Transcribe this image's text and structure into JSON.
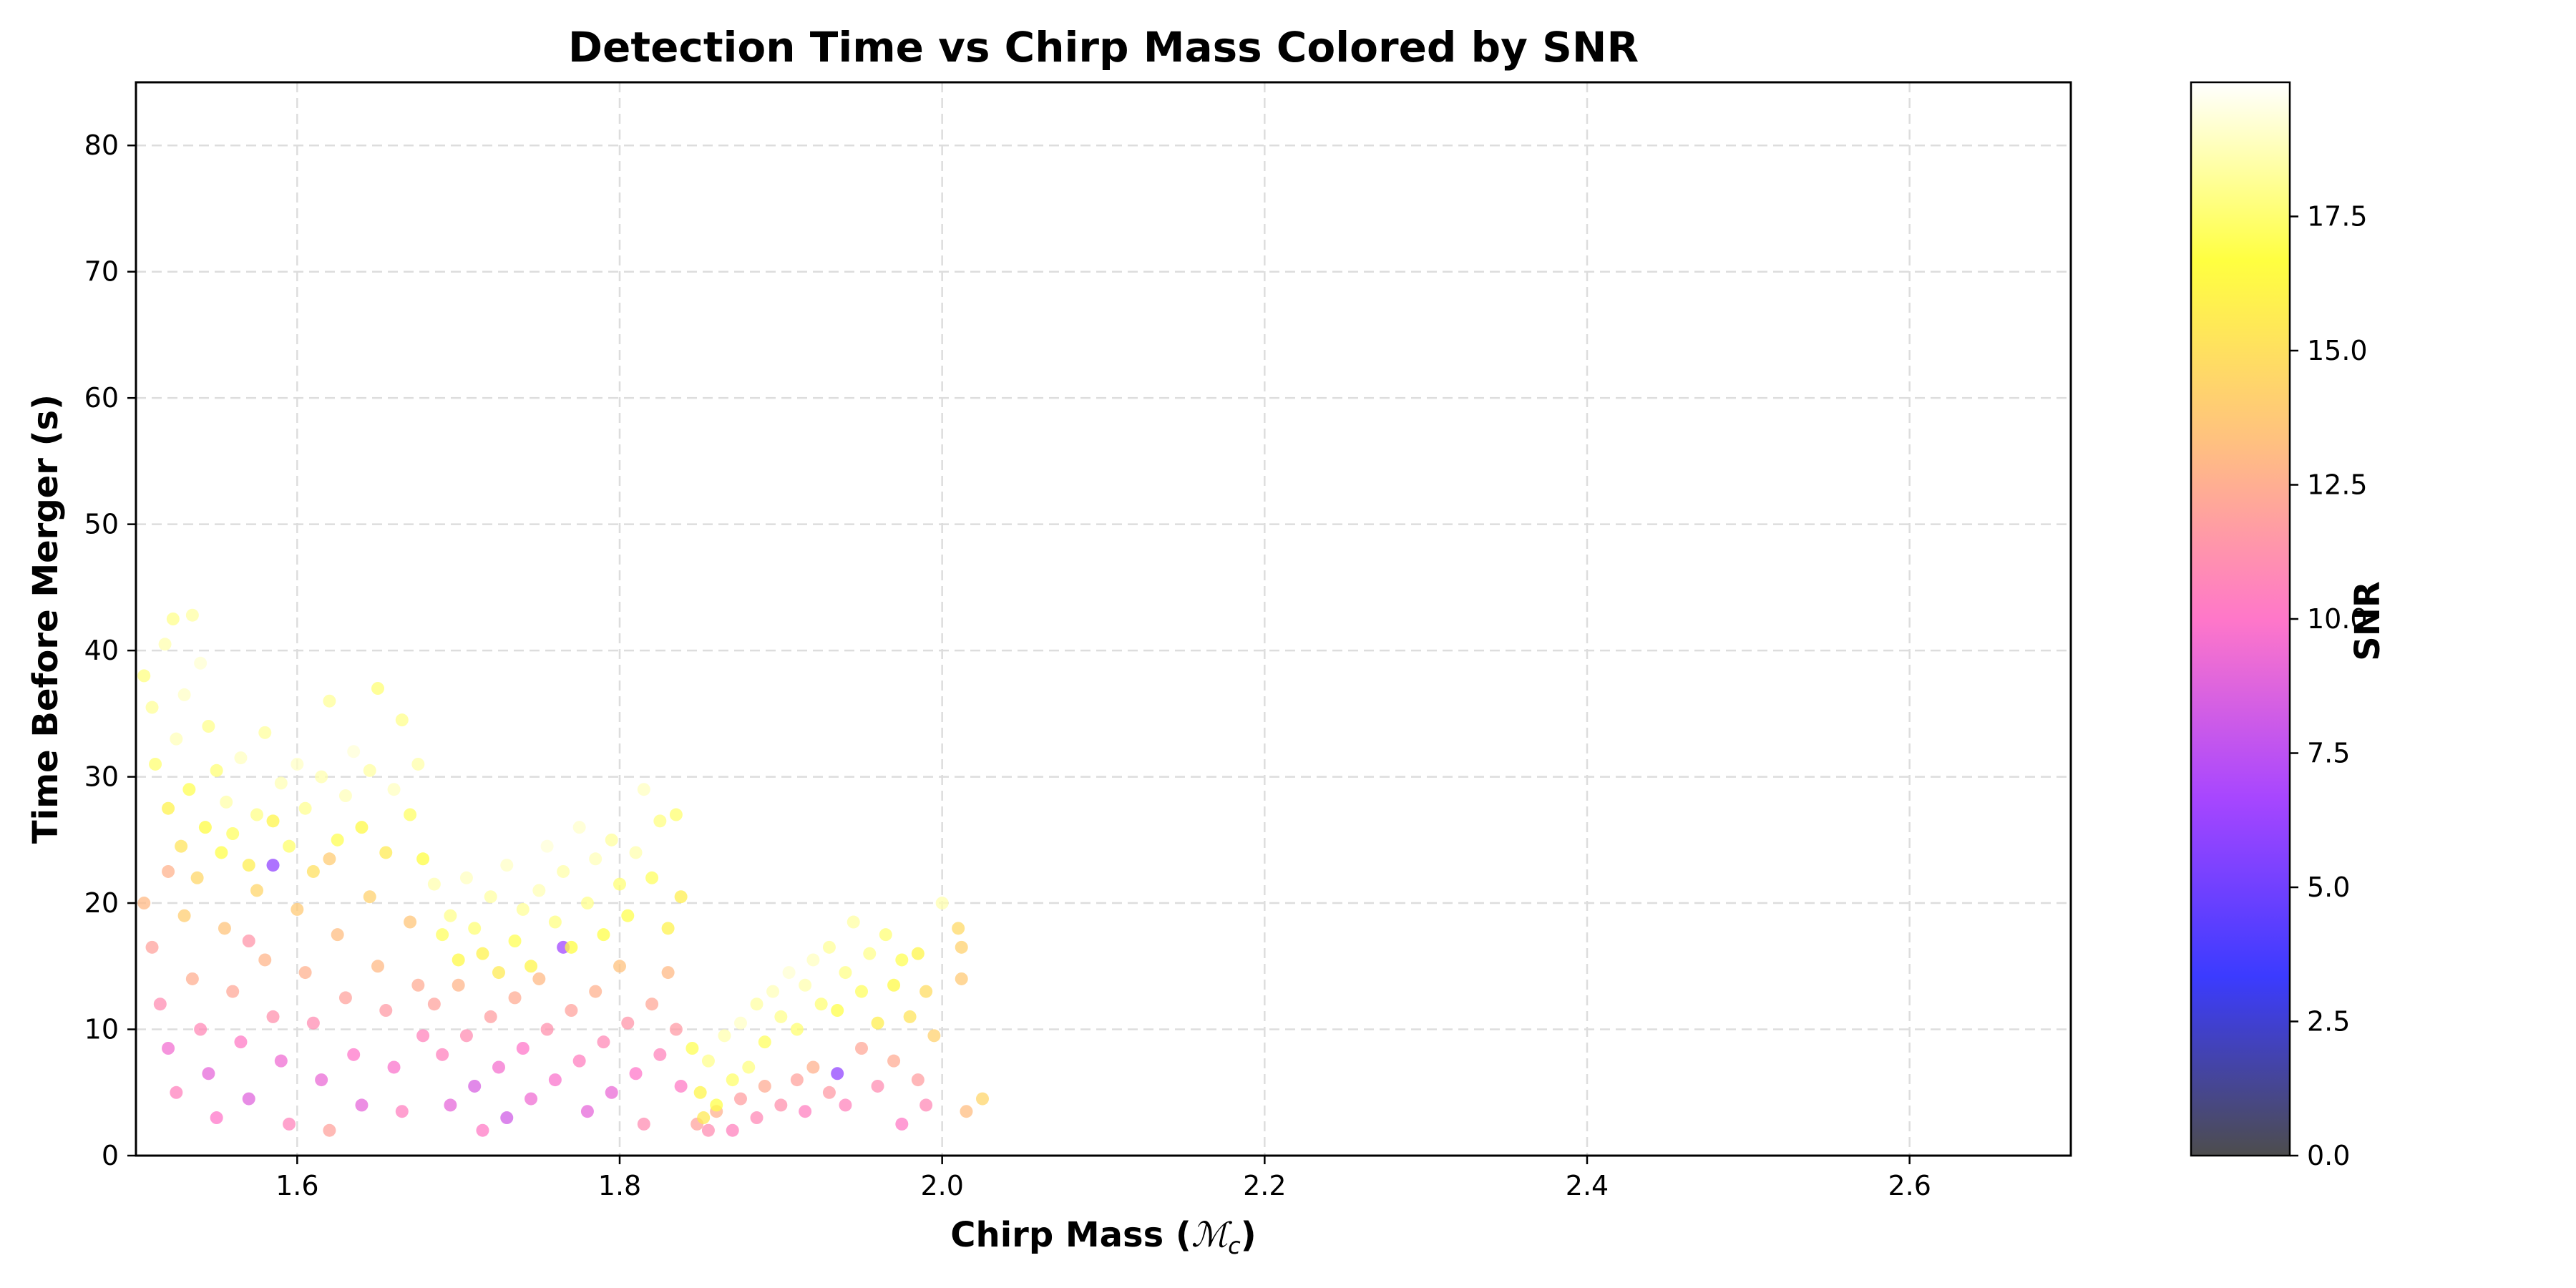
{
  "chart_data": {
    "type": "scatter",
    "title": "Detection Time vs Chirp Mass Colored by SNR",
    "xlabel": "Chirp Mass (ℳc)",
    "xlabel_text": "Chirp Mass (",
    "xlabel_symbol": "ℳ",
    "xlabel_subscript": "c",
    "xlabel_close": ")",
    "ylabel": "Time Before Merger (s)",
    "xlim": [
      1.5,
      2.7
    ],
    "ylim": [
      0,
      85
    ],
    "xticks": [
      1.6,
      1.8,
      2.0,
      2.2,
      2.4,
      2.6
    ],
    "xtick_labels": [
      "1.6",
      "1.8",
      "2.0",
      "2.2",
      "2.4",
      "2.6"
    ],
    "yticks": [
      0,
      10,
      20,
      30,
      40,
      50,
      60,
      70,
      80
    ],
    "ytick_labels": [
      "0",
      "10",
      "20",
      "30",
      "40",
      "50",
      "60",
      "70",
      "80"
    ],
    "grid": true,
    "colorbar": {
      "label": "SNR",
      "range": [
        0,
        20
      ],
      "ticks": [
        0.0,
        2.5,
        5.0,
        7.5,
        10.0,
        12.5,
        15.0,
        17.5
      ],
      "tick_labels": [
        "0.0",
        "2.5",
        "5.0",
        "7.5",
        "10.0",
        "12.5",
        "15.0",
        "17.5"
      ],
      "colormap": "gnuplot2-like (dark grey → blue → purple → pink → orange → yellow → white)",
      "colors": [
        "#4d4d4d",
        "#3b3bff",
        "#a746ff",
        "#ff77c9",
        "#ffc17f",
        "#ffff40",
        "#ffffff"
      ]
    },
    "clusters": [
      {
        "x_range": [
          1.5,
          1.68
        ],
        "y_range": [
          2,
          43
        ],
        "snr_range": [
          6,
          19.5
        ],
        "note": "high-SNR points at top, low-SNR points at bottom"
      },
      {
        "x_range": [
          1.68,
          1.84
        ],
        "y_range": [
          1.5,
          29
        ],
        "snr_range": [
          6,
          19.5
        ],
        "note": "second band, yellow upper, purple lower"
      },
      {
        "x_range": [
          1.84,
          2.03
        ],
        "y_range": [
          1.5,
          20
        ],
        "snr_range": [
          8,
          19
        ],
        "note": "third band, rising toward x=2.0"
      }
    ],
    "series": [
      {
        "points": [
          [
            1.505,
            38.0,
            17.8
          ],
          [
            1.51,
            35.5,
            18.2
          ],
          [
            1.512,
            31.0,
            17.5
          ],
          [
            1.518,
            40.5,
            18.6
          ],
          [
            1.52,
            27.5,
            16.0
          ],
          [
            1.523,
            42.5,
            18.0
          ],
          [
            1.525,
            33.0,
            18.8
          ],
          [
            1.528,
            24.5,
            15.2
          ],
          [
            1.53,
            36.5,
            19.0
          ],
          [
            1.533,
            29.0,
            17.0
          ],
          [
            1.535,
            42.8,
            18.4
          ],
          [
            1.538,
            22.0,
            14.5
          ],
          [
            1.54,
            39.0,
            19.2
          ],
          [
            1.543,
            26.0,
            16.5
          ],
          [
            1.545,
            34.0,
            18.0
          ],
          [
            1.55,
            30.5,
            17.6
          ],
          [
            1.553,
            24.0,
            16.8
          ],
          [
            1.556,
            28.0,
            18.5
          ],
          [
            1.56,
            25.5,
            17.2
          ],
          [
            1.565,
            31.5,
            18.9
          ],
          [
            1.57,
            23.0,
            15.8
          ],
          [
            1.575,
            27.0,
            17.9
          ],
          [
            1.58,
            33.5,
            18.3
          ],
          [
            1.585,
            26.5,
            16.2
          ],
          [
            1.59,
            29.5,
            18.7
          ],
          [
            1.595,
            24.5,
            17.4
          ],
          [
            1.6,
            31.0,
            19.0
          ],
          [
            1.605,
            27.5,
            18.1
          ],
          [
            1.61,
            22.5,
            15.0
          ],
          [
            1.615,
            30.0,
            18.6
          ],
          [
            1.62,
            36.0,
            18.2
          ],
          [
            1.625,
            25.0,
            17.0
          ],
          [
            1.63,
            28.5,
            18.8
          ],
          [
            1.635,
            32.0,
            19.3
          ],
          [
            1.64,
            26.0,
            16.4
          ],
          [
            1.645,
            30.5,
            18.4
          ],
          [
            1.65,
            37.0,
            17.6
          ],
          [
            1.655,
            24.0,
            15.6
          ],
          [
            1.66,
            29.0,
            18.9
          ],
          [
            1.665,
            34.5,
            18.0
          ],
          [
            1.67,
            27.0,
            17.3
          ],
          [
            1.675,
            31.0,
            18.5
          ],
          [
            1.678,
            23.5,
            16.6
          ],
          [
            1.505,
            20.0,
            13.0
          ],
          [
            1.51,
            16.5,
            12.0
          ],
          [
            1.515,
            12.0,
            11.0
          ],
          [
            1.52,
            8.5,
            9.5
          ],
          [
            1.525,
            5.0,
            10.5
          ],
          [
            1.53,
            19.0,
            14.0
          ],
          [
            1.535,
            14.0,
            12.5
          ],
          [
            1.54,
            10.0,
            10.8
          ],
          [
            1.545,
            6.5,
            9.0
          ],
          [
            1.55,
            3.0,
            10.0
          ],
          [
            1.555,
            18.0,
            13.5
          ],
          [
            1.56,
            13.0,
            12.2
          ],
          [
            1.565,
            9.0,
            10.2
          ],
          [
            1.57,
            4.5,
            8.8
          ],
          [
            1.575,
            21.0,
            14.4
          ],
          [
            1.58,
            15.5,
            12.8
          ],
          [
            1.585,
            11.0,
            11.2
          ],
          [
            1.585,
            23.0,
            6.0
          ],
          [
            1.59,
            7.5,
            9.4
          ],
          [
            1.595,
            2.5,
            10.6
          ],
          [
            1.6,
            19.5,
            13.8
          ],
          [
            1.605,
            14.5,
            12.6
          ],
          [
            1.61,
            10.5,
            11.0
          ],
          [
            1.615,
            6.0,
            9.2
          ],
          [
            1.62,
            2.0,
            12.0
          ],
          [
            1.625,
            17.5,
            13.2
          ],
          [
            1.63,
            12.5,
            12.0
          ],
          [
            1.635,
            8.0,
            10.0
          ],
          [
            1.64,
            4.0,
            9.0
          ],
          [
            1.645,
            20.5,
            14.2
          ],
          [
            1.65,
            15.0,
            13.0
          ],
          [
            1.655,
            11.5,
            11.6
          ],
          [
            1.66,
            7.0,
            9.8
          ],
          [
            1.665,
            3.5,
            10.4
          ],
          [
            1.67,
            18.5,
            13.6
          ],
          [
            1.675,
            13.5,
            12.4
          ],
          [
            1.678,
            9.5,
            10.6
          ],
          [
            1.52,
            22.5,
            12.7
          ],
          [
            1.57,
            17.0,
            11.4
          ],
          [
            1.62,
            23.5,
            13.9
          ],
          [
            1.685,
            21.5,
            18.6
          ],
          [
            1.69,
            17.5,
            17.2
          ],
          [
            1.695,
            19.0,
            18.0
          ],
          [
            1.7,
            15.5,
            16.4
          ],
          [
            1.705,
            22.0,
            18.9
          ],
          [
            1.71,
            18.0,
            17.6
          ],
          [
            1.715,
            16.0,
            16.0
          ],
          [
            1.72,
            20.5,
            18.4
          ],
          [
            1.725,
            14.5,
            15.6
          ],
          [
            1.73,
            23.0,
            19.0
          ],
          [
            1.735,
            17.0,
            17.0
          ],
          [
            1.74,
            19.5,
            18.2
          ],
          [
            1.745,
            15.0,
            16.2
          ],
          [
            1.75,
            21.0,
            18.7
          ],
          [
            1.755,
            24.5,
            19.3
          ],
          [
            1.76,
            18.5,
            17.8
          ],
          [
            1.765,
            22.5,
            18.5
          ],
          [
            1.77,
            16.5,
            16.6
          ],
          [
            1.775,
            26.0,
            19.1
          ],
          [
            1.78,
            20.0,
            18.0
          ],
          [
            1.785,
            23.5,
            18.8
          ],
          [
            1.79,
            17.5,
            16.8
          ],
          [
            1.795,
            25.0,
            18.3
          ],
          [
            1.8,
            21.5,
            17.6
          ],
          [
            1.805,
            19.0,
            16.9
          ],
          [
            1.81,
            24.0,
            18.6
          ],
          [
            1.815,
            29.0,
            18.9
          ],
          [
            1.82,
            22.0,
            17.2
          ],
          [
            1.825,
            26.5,
            17.8
          ],
          [
            1.83,
            18.0,
            16.0
          ],
          [
            1.835,
            27.0,
            17.5
          ],
          [
            1.838,
            20.5,
            15.8
          ],
          [
            1.685,
            12.0,
            12.0
          ],
          [
            1.69,
            8.0,
            10.5
          ],
          [
            1.695,
            4.0,
            9.0
          ],
          [
            1.7,
            13.5,
            12.8
          ],
          [
            1.705,
            9.5,
            11.0
          ],
          [
            1.71,
            5.5,
            8.5
          ],
          [
            1.715,
            2.0,
            10.2
          ],
          [
            1.72,
            11.0,
            11.8
          ],
          [
            1.725,
            7.0,
            9.6
          ],
          [
            1.73,
            3.0,
            8.2
          ],
          [
            1.735,
            12.5,
            12.4
          ],
          [
            1.74,
            8.5,
            10.0
          ],
          [
            1.745,
            4.5,
            9.4
          ],
          [
            1.75,
            14.0,
            13.0
          ],
          [
            1.755,
            10.0,
            11.2
          ],
          [
            1.76,
            6.0,
            9.8
          ],
          [
            1.765,
            16.5,
            6.5
          ],
          [
            1.77,
            11.5,
            12.0
          ],
          [
            1.775,
            7.5,
            10.4
          ],
          [
            1.78,
            3.5,
            9.0
          ],
          [
            1.785,
            13.0,
            12.6
          ],
          [
            1.79,
            9.0,
            10.8
          ],
          [
            1.795,
            5.0,
            9.2
          ],
          [
            1.8,
            15.0,
            13.4
          ],
          [
            1.805,
            10.5,
            11.4
          ],
          [
            1.81,
            6.5,
            10.0
          ],
          [
            1.815,
            2.5,
            11.0
          ],
          [
            1.82,
            12.0,
            12.2
          ],
          [
            1.825,
            8.0,
            10.6
          ],
          [
            1.83,
            14.5,
            13.0
          ],
          [
            1.835,
            10.0,
            11.6
          ],
          [
            1.838,
            5.5,
            10.2
          ],
          [
            1.845,
            8.5,
            17.0
          ],
          [
            1.85,
            5.0,
            16.2
          ],
          [
            1.852,
            3.0,
            15.5
          ],
          [
            1.855,
            7.5,
            18.0
          ],
          [
            1.86,
            4.0,
            16.8
          ],
          [
            1.865,
            9.5,
            18.6
          ],
          [
            1.87,
            6.0,
            17.4
          ],
          [
            1.875,
            10.5,
            19.0
          ],
          [
            1.88,
            7.0,
            17.8
          ],
          [
            1.885,
            12.0,
            18.4
          ],
          [
            1.89,
            9.0,
            17.2
          ],
          [
            1.895,
            13.0,
            18.8
          ],
          [
            1.9,
            11.0,
            18.0
          ],
          [
            1.905,
            14.5,
            19.2
          ],
          [
            1.91,
            10.0,
            17.5
          ],
          [
            1.915,
            13.5,
            18.6
          ],
          [
            1.92,
            15.5,
            18.9
          ],
          [
            1.925,
            12.0,
            17.6
          ],
          [
            1.93,
            16.5,
            18.2
          ],
          [
            1.935,
            11.5,
            16.8
          ],
          [
            1.94,
            14.5,
            17.9
          ],
          [
            1.945,
            18.5,
            18.4
          ],
          [
            1.95,
            13.0,
            17.2
          ],
          [
            1.955,
            16.0,
            18.0
          ],
          [
            1.96,
            10.5,
            15.8
          ],
          [
            1.965,
            17.5,
            17.6
          ],
          [
            1.97,
            13.5,
            16.4
          ],
          [
            1.975,
            15.5,
            17.0
          ],
          [
            1.98,
            11.0,
            15.2
          ],
          [
            1.985,
            16.0,
            16.2
          ],
          [
            1.99,
            13.0,
            14.8
          ],
          [
            1.995,
            9.5,
            14.2
          ],
          [
            2.0,
            20.0,
            18.6
          ],
          [
            2.01,
            18.0,
            14.6
          ],
          [
            2.012,
            16.5,
            14.2
          ],
          [
            2.012,
            14.0,
            13.8
          ],
          [
            2.025,
            4.5,
            14.4
          ],
          [
            2.015,
            3.5,
            13.2
          ],
          [
            1.848,
            2.5,
            12.0
          ],
          [
            1.855,
            2.0,
            11.0
          ],
          [
            1.86,
            3.5,
            12.6
          ],
          [
            1.87,
            2.0,
            10.5
          ],
          [
            1.875,
            4.5,
            11.8
          ],
          [
            1.885,
            3.0,
            10.8
          ],
          [
            1.89,
            5.5,
            12.4
          ],
          [
            1.9,
            4.0,
            11.2
          ],
          [
            1.91,
            6.0,
            12.0
          ],
          [
            1.915,
            3.5,
            10.4
          ],
          [
            1.92,
            7.0,
            12.6
          ],
          [
            1.93,
            5.0,
            11.6
          ],
          [
            1.935,
            6.5,
            6.0
          ],
          [
            1.94,
            4.0,
            10.6
          ],
          [
            1.95,
            8.5,
            12.2
          ],
          [
            1.96,
            5.5,
            11.0
          ],
          [
            1.97,
            7.5,
            12.4
          ],
          [
            1.975,
            2.5,
            10.2
          ],
          [
            1.985,
            6.0,
            11.8
          ],
          [
            1.99,
            4.0,
            10.8
          ]
        ]
      }
    ]
  }
}
